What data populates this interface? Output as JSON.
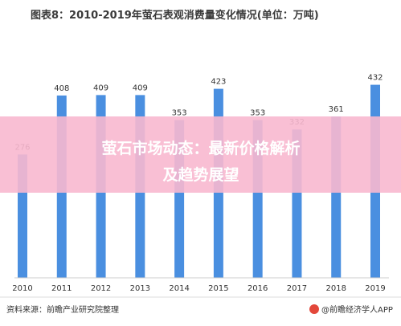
{
  "chart_data": {
    "type": "bar",
    "title": "图表8：2010-2019年萤石表观消费量变化情况(单位：万吨)",
    "categories": [
      "2010",
      "2011",
      "2012",
      "2013",
      "2014",
      "2015",
      "2016",
      "2017",
      "2018",
      "2019"
    ],
    "values": [
      276,
      408,
      409,
      409,
      353,
      423,
      353,
      332,
      361,
      432
    ],
    "ylim": [
      0,
      460
    ],
    "grid": false,
    "legend": "none",
    "bar_color": "#4a8fe0"
  },
  "footer": {
    "source": "资料来源：前瞻产业研究院整理",
    "brand": "@前瞻经济学人APP"
  },
  "overlay": {
    "banner_line1": "萤石市场动态：最新价格解析",
    "banner_line2": "及趋势展望",
    "banner_color": "#f8b8cf"
  }
}
